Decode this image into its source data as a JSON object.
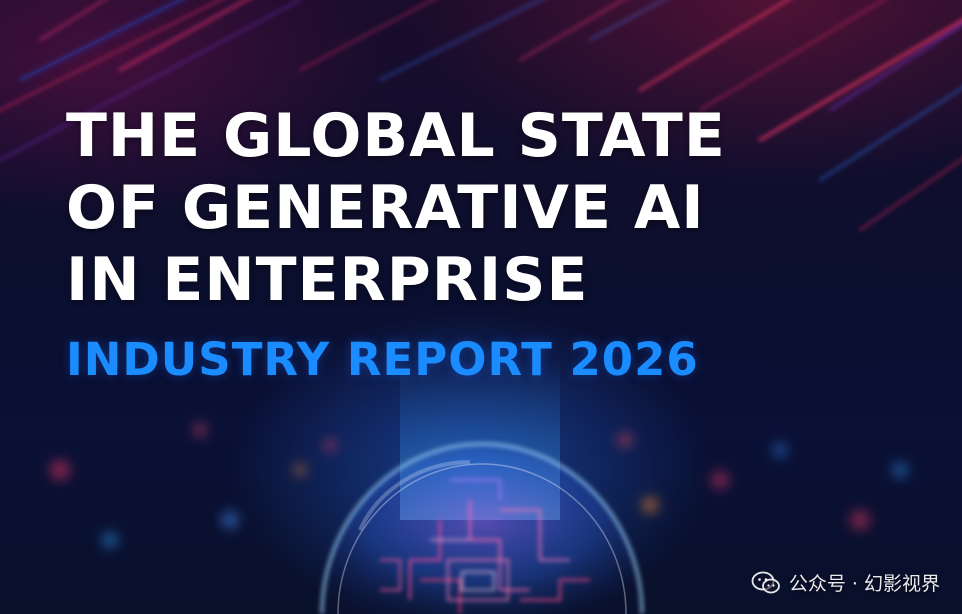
{
  "cover": {
    "title_lines": [
      "THE GLOBAL STATE",
      "OF GENERATIVE AI",
      "IN ENTERPRISE"
    ],
    "subtitle": "INDUSTRY REPORT 2026",
    "accent_color": "#1a8cff",
    "title_color": "#ffffff"
  },
  "watermark": {
    "text": "公众号 · 幻影视界",
    "icon": "wechat-icon"
  },
  "artwork": {
    "depicts": [
      "neon-streak-lines",
      "glowing-glass-dome",
      "circuit-pattern"
    ]
  }
}
